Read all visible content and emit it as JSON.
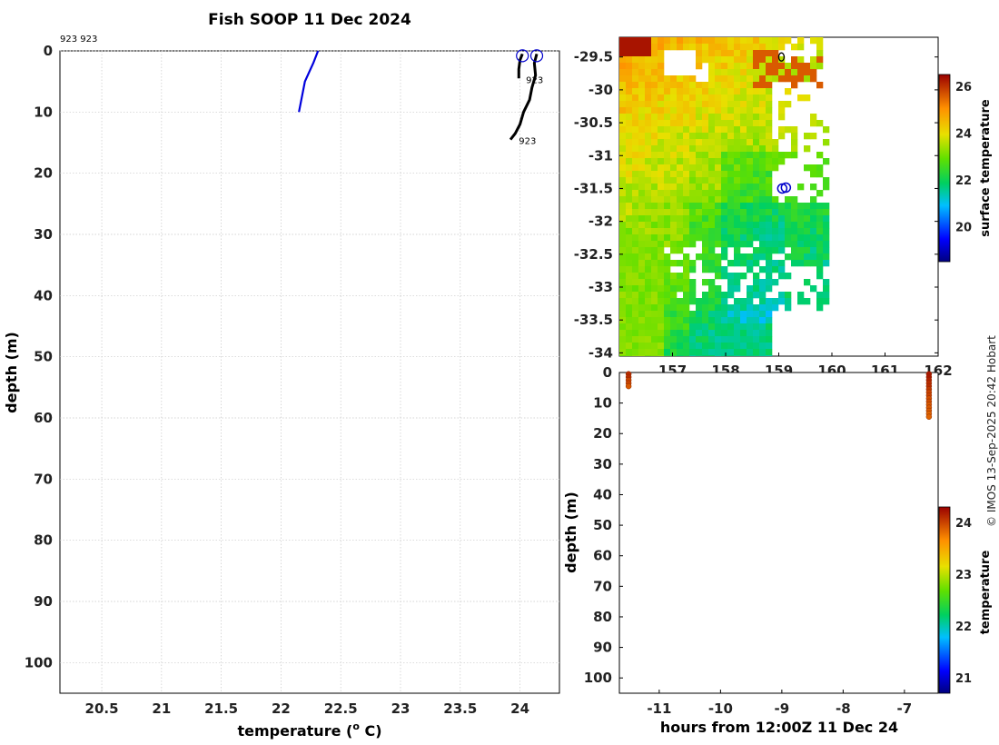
{
  "title": "Fish SOOP 11 Dec 2024",
  "credit": "© IMOS 13-Sep-2025 20:42 Hobart",
  "colors": {
    "grid": "#c8c8c8",
    "axis": "#000000",
    "modelLine": "#0000dd",
    "obsLine": "#000000",
    "marker": "#0000cc"
  },
  "chart_data": [
    {
      "type": "line",
      "name": "temperature-profile",
      "xlabel": "temperature (° C)",
      "xlabel_prefix": "temperature (",
      "xlabel_sup": "o",
      "xlabel_suffix": " C)",
      "ylabel": "depth (m)",
      "xlim": [
        20.15,
        24.33
      ],
      "ylim": [
        0,
        105
      ],
      "xticks": [
        "20.5",
        "21",
        "21.5",
        "22",
        "22.5",
        "23",
        "23.5",
        "24"
      ],
      "yticks": [
        "0",
        "10",
        "20",
        "30",
        "40",
        "50",
        "60",
        "70",
        "80",
        "90",
        "100"
      ],
      "top_labels": "923 923",
      "series": [
        {
          "name": "model-profile",
          "color": "#0000dd",
          "temperature": [
            22.15,
            22.2,
            22.27,
            22.31
          ],
          "depth": [
            10,
            5,
            2,
            0
          ]
        },
        {
          "name": "obs-profile-1",
          "color": "#000000",
          "temperature": [
            24.02,
            24.0,
            23.99,
            23.99
          ],
          "depth": [
            0.5,
            1.5,
            3,
            4.5
          ]
        },
        {
          "name": "obs-profile-2",
          "color": "#000000",
          "temperature": [
            24.14,
            24.12,
            24.13,
            24.1,
            24.08,
            24.03,
            24.0,
            23.96,
            23.92
          ],
          "depth": [
            0.5,
            2,
            4,
            6,
            8,
            10,
            12,
            13.5,
            14.5
          ]
        }
      ],
      "markers": [
        {
          "label": "",
          "temperature": 24.02,
          "depth": 0.8
        },
        {
          "label": "",
          "temperature": 24.14,
          "depth": 0.8
        }
      ],
      "annotations": [
        {
          "text": "923",
          "temperature": 24.05,
          "depth": 4.5
        },
        {
          "text": "923",
          "temperature": 23.99,
          "depth": 14.5
        }
      ]
    },
    {
      "type": "heatmap",
      "name": "surface-temperature-map",
      "colorbar_label": "surface temperature",
      "xlim": [
        156.0,
        162.0
      ],
      "ylim": [
        -34.05,
        -29.2
      ],
      "xticks": [
        "157",
        "158",
        "159",
        "160",
        "161",
        "162"
      ],
      "yticks": [
        "-29.5",
        "-30",
        "-30.5",
        "-31",
        "-31.5",
        "-32",
        "-32.5",
        "-33",
        "-33.5",
        "-34"
      ],
      "clim": [
        18.5,
        26.5
      ],
      "cticks": [
        "20",
        "22",
        "24",
        "26"
      ],
      "station": {
        "lon": 159.1,
        "lat": -31.5
      },
      "origin": {
        "lon": 159.05,
        "lat": -29.5
      }
    },
    {
      "type": "scatter",
      "name": "depth-time",
      "xlabel": "hours from 12:00Z 11 Dec 24",
      "ylabel": "depth (m)",
      "xlim": [
        -11.65,
        -6.45
      ],
      "ylim": [
        0,
        105
      ],
      "xticks": [
        "-11",
        "-10",
        "-9",
        "-8",
        "-7"
      ],
      "yticks": [
        "0",
        "10",
        "20",
        "30",
        "40",
        "50",
        "60",
        "70",
        "80",
        "90",
        "100"
      ],
      "colorbar_label": "temperature",
      "clim": [
        20.7,
        24.3
      ],
      "cticks": [
        "21",
        "22",
        "23",
        "24"
      ],
      "casts": [
        {
          "hours": -11.5,
          "depth": [
            0.5,
            1.5,
            2.5,
            3.5,
            4.5
          ],
          "temperature": [
            24.1,
            24.1,
            24.0,
            24.0,
            23.9
          ]
        },
        {
          "hours": -6.6,
          "depth": [
            0.5,
            1.5,
            2.5,
            3.5,
            4.5,
            5.5,
            6.5,
            7.5,
            8.5,
            9.5,
            10.5,
            11.5,
            12.5,
            13.5,
            14.5
          ],
          "temperature": [
            24.2,
            24.2,
            24.15,
            24.1,
            24.1,
            24.05,
            24.0,
            24.0,
            23.95,
            23.95,
            23.9,
            23.9,
            23.9,
            23.85,
            23.85
          ]
        }
      ]
    }
  ]
}
